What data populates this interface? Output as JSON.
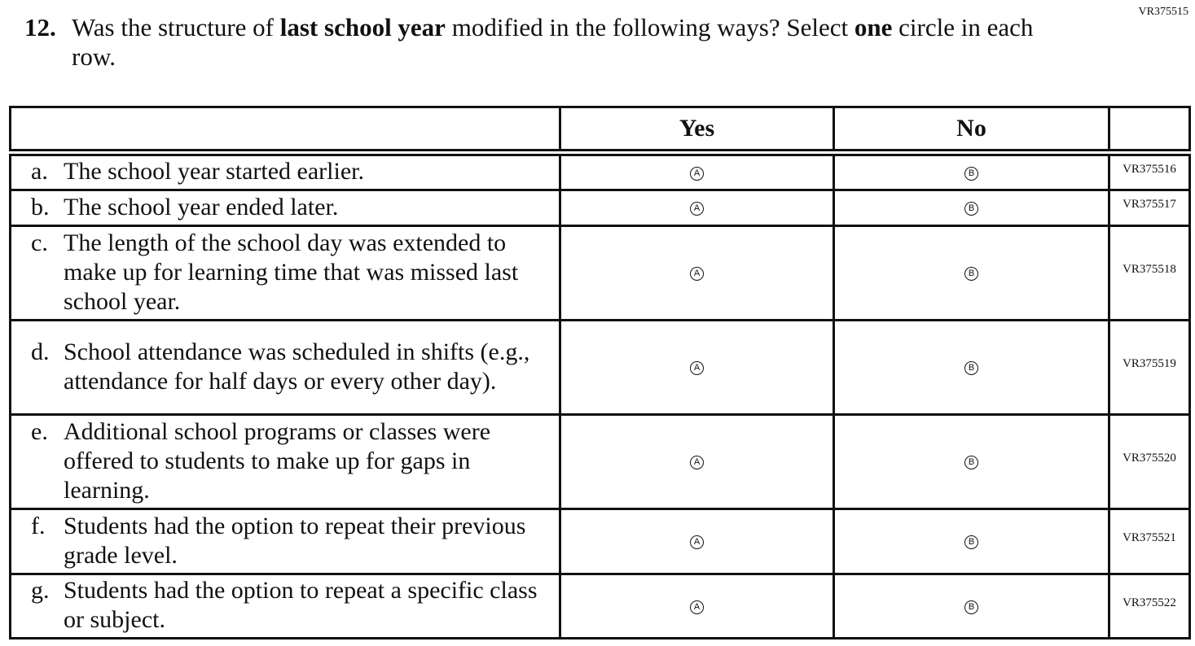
{
  "header": {
    "item_code": "VR375515"
  },
  "question": {
    "number": "12.",
    "parts": [
      {
        "text": "Was the structure of ",
        "bold": false
      },
      {
        "text": "last school year",
        "bold": true
      },
      {
        "text": " modified in the following ways? Select ",
        "bold": false
      },
      {
        "text": "one",
        "bold": true
      },
      {
        "text": " circle in each row.",
        "bold": false
      }
    ]
  },
  "table": {
    "columns": [
      "Yes",
      "No"
    ],
    "rows": [
      {
        "letter": "a.",
        "text": "The school year started earlier.",
        "options": [
          "A",
          "B"
        ],
        "code": "VR375516"
      },
      {
        "letter": "b.",
        "text": "The school year ended later.",
        "options": [
          "A",
          "B"
        ],
        "code": "VR375517"
      },
      {
        "letter": "c.",
        "text": "The length of the school day was extended to make up for learning time that was missed last school year.",
        "options": [
          "A",
          "B"
        ],
        "code": "VR375518"
      },
      {
        "letter": "d.",
        "text": "School attendance was scheduled in shifts (e.g., attendance for half days or every other day).",
        "options": [
          "A",
          "B"
        ],
        "code": "VR375519"
      },
      {
        "letter": "e.",
        "text": "Additional school programs or classes were offered to students to make up for gaps in learning.",
        "options": [
          "A",
          "B"
        ],
        "code": "VR375520"
      },
      {
        "letter": "f.",
        "text": "Students had the option to repeat their previous grade level.",
        "options": [
          "A",
          "B"
        ],
        "code": "VR375521"
      },
      {
        "letter": "g.",
        "text": "Students had the option to repeat a specific class or subject.",
        "options": [
          "A",
          "B"
        ],
        "code": "VR375522"
      }
    ]
  }
}
